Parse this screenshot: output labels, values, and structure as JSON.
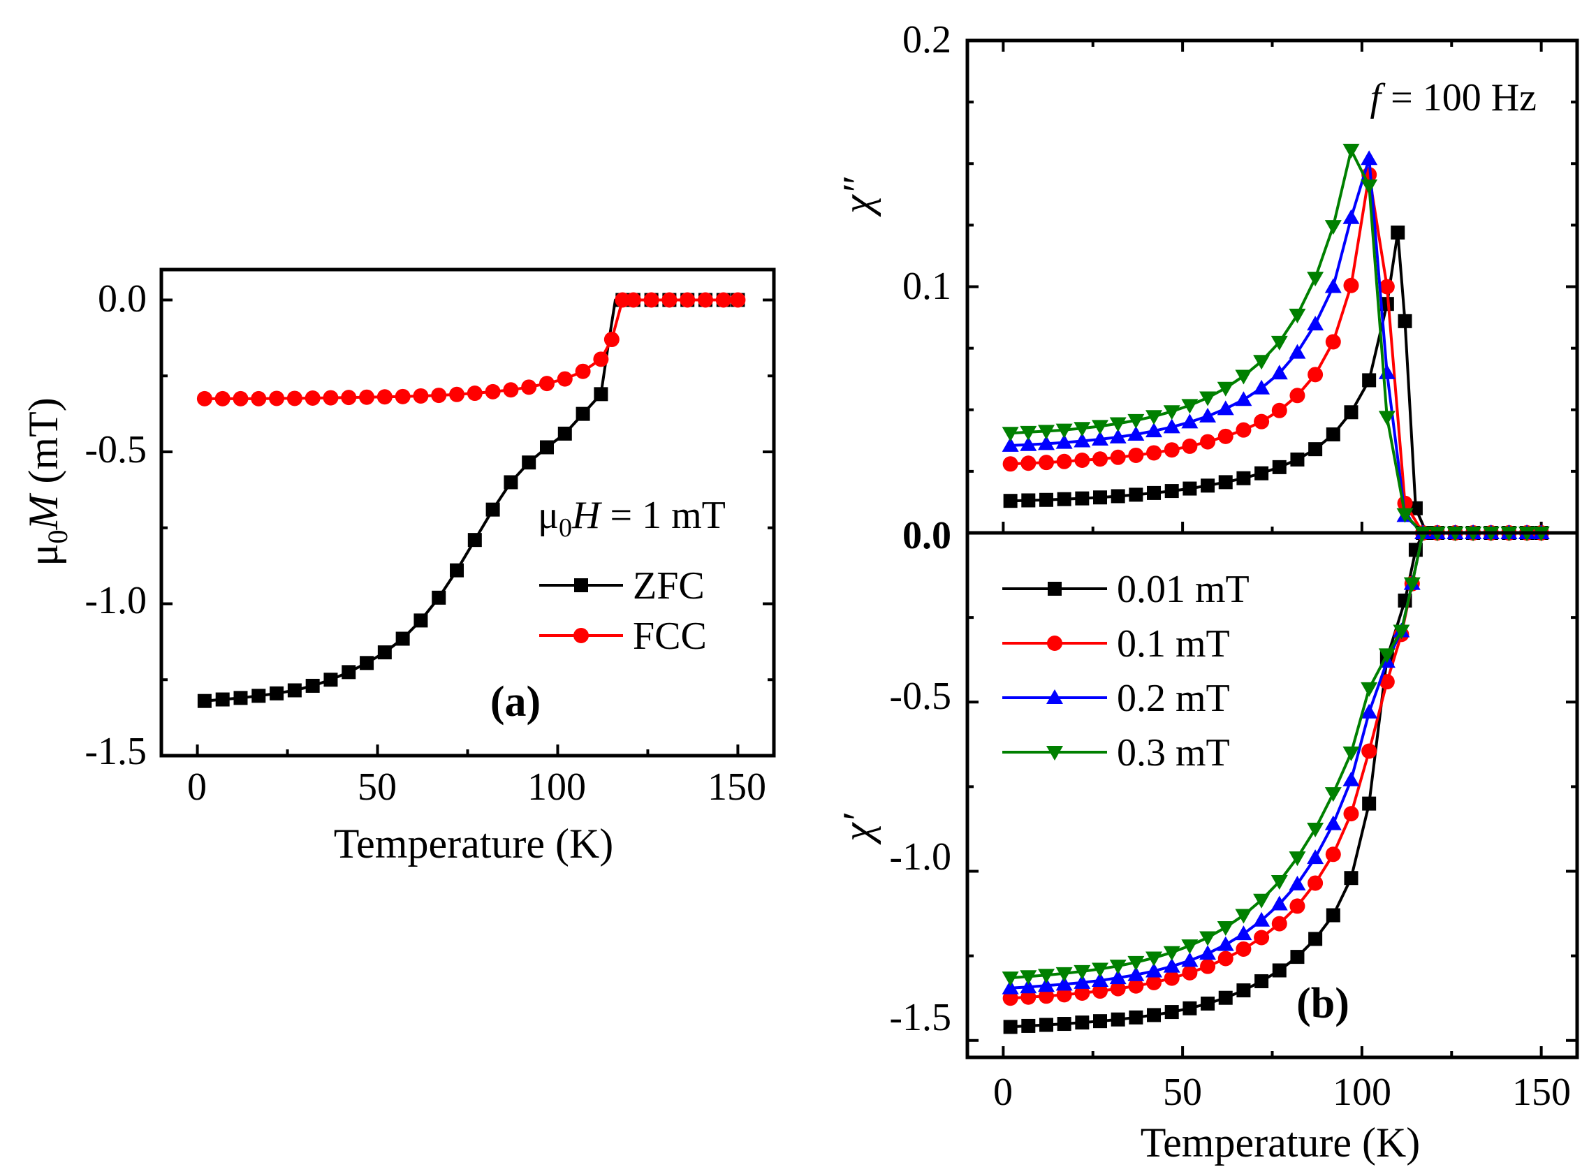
{
  "chart_data": [
    {
      "type": "line",
      "panel": "(a)",
      "title": "",
      "xlabel": "Temperature (K)",
      "ylabel": "μ0M (mT)",
      "ylabel_parts": {
        "mu": "μ",
        "sub": "0",
        "var": "M",
        "unit": "(mT)"
      },
      "xlim": [
        -10,
        160
      ],
      "ylim": [
        -1.5,
        0.1
      ],
      "xticks": [
        0,
        50,
        100,
        150
      ],
      "xtick_labels": [
        "0",
        "50",
        "100",
        "150"
      ],
      "yticks": [
        0.0,
        -0.5,
        -1.0,
        -1.5
      ],
      "ytick_labels": [
        "0.0",
        "-0.5",
        "-1.0",
        "-1.5"
      ],
      "annotation": {
        "mu": "μ",
        "sub": "0",
        "var": "H",
        "rest": " = 1 mT"
      },
      "legend_position": "middle-right",
      "series": [
        {
          "name": "ZFC",
          "color": "#000000",
          "marker": "square",
          "x": [
            2,
            7,
            12,
            17,
            22,
            27,
            32,
            37,
            42,
            47,
            52,
            57,
            62,
            67,
            72,
            77,
            82,
            87,
            92,
            97,
            102,
            107,
            112,
            114,
            116,
            118,
            121,
            126,
            131,
            136,
            141,
            146,
            150
          ],
          "y": [
            -1.32,
            -1.315,
            -1.31,
            -1.303,
            -1.295,
            -1.285,
            -1.27,
            -1.25,
            -1.225,
            -1.195,
            -1.16,
            -1.115,
            -1.055,
            -0.98,
            -0.89,
            -0.79,
            -0.69,
            -0.6,
            -0.535,
            -0.485,
            -0.44,
            -0.375,
            -0.31,
            -0.15,
            0.0,
            0.0,
            0.0,
            0.0,
            0.0,
            0.0,
            0.0,
            0.0,
            0.0
          ],
          "marker_x": [
            2,
            7,
            12,
            17,
            22,
            27,
            32,
            37,
            42,
            47,
            52,
            57,
            62,
            67,
            72,
            77,
            82,
            87,
            92,
            97,
            102,
            107,
            112,
            118,
            121,
            126,
            131,
            136,
            141,
            146,
            150
          ],
          "marker_y": [
            -1.32,
            -1.315,
            -1.31,
            -1.303,
            -1.295,
            -1.285,
            -1.27,
            -1.25,
            -1.225,
            -1.195,
            -1.16,
            -1.115,
            -1.055,
            -0.98,
            -0.89,
            -0.79,
            -0.69,
            -0.6,
            -0.535,
            -0.485,
            -0.44,
            -0.375,
            -0.31,
            0.0,
            0.0,
            0.0,
            0.0,
            0.0,
            0.0,
            0.0,
            0.0
          ]
        },
        {
          "name": "FCC",
          "color": "#ff0000",
          "marker": "circle",
          "x": [
            2,
            7,
            12,
            17,
            22,
            27,
            32,
            37,
            42,
            47,
            52,
            57,
            62,
            67,
            72,
            77,
            82,
            87,
            92,
            97,
            102,
            107,
            112,
            115,
            118,
            121,
            126,
            131,
            136,
            141,
            146,
            150
          ],
          "y": [
            -0.325,
            -0.325,
            -0.325,
            -0.325,
            -0.324,
            -0.324,
            -0.323,
            -0.322,
            -0.321,
            -0.32,
            -0.319,
            -0.318,
            -0.316,
            -0.314,
            -0.311,
            -0.307,
            -0.302,
            -0.296,
            -0.287,
            -0.275,
            -0.26,
            -0.235,
            -0.195,
            -0.13,
            0.0,
            0.0,
            0.0,
            0.0,
            0.0,
            0.0,
            0.0,
            0.0
          ]
        }
      ]
    },
    {
      "type": "line",
      "panel": "(b)",
      "subplot": "top",
      "ylabel": "χ″",
      "xlim": [
        -10,
        160
      ],
      "ylim": [
        0.0,
        0.2
      ],
      "yticks": [
        0.2,
        0.1,
        0.0
      ],
      "ytick_labels": [
        "0.2",
        "0.1",
        "0.0"
      ],
      "annotation": {
        "var": "f",
        "rest": " = 100 Hz"
      },
      "series": [
        {
          "name": "0.01 mT",
          "color": "#000000",
          "marker": "square",
          "x": [
            2,
            7,
            12,
            17,
            22,
            27,
            32,
            37,
            42,
            47,
            52,
            57,
            62,
            67,
            72,
            77,
            82,
            87,
            92,
            97,
            102,
            107,
            110,
            112,
            115,
            118,
            121,
            126,
            131,
            136,
            141,
            146,
            150
          ],
          "y": [
            0.013,
            0.0132,
            0.0134,
            0.0137,
            0.014,
            0.0144,
            0.0149,
            0.0155,
            0.0162,
            0.017,
            0.018,
            0.0192,
            0.0206,
            0.0222,
            0.0242,
            0.0267,
            0.0298,
            0.034,
            0.04,
            0.049,
            0.062,
            0.093,
            0.122,
            0.086,
            0.01,
            0.0,
            0.0,
            0.0,
            0.0,
            0.0,
            0.0,
            0.0,
            0.0
          ]
        },
        {
          "name": "0.1 mT",
          "color": "#ff0000",
          "marker": "circle",
          "x": [
            2,
            7,
            12,
            17,
            22,
            27,
            32,
            37,
            42,
            47,
            52,
            57,
            62,
            67,
            72,
            77,
            82,
            87,
            92,
            97,
            102,
            107,
            112,
            117,
            121,
            126,
            131,
            136,
            141,
            146,
            150
          ],
          "y": [
            0.028,
            0.0283,
            0.0286,
            0.029,
            0.0295,
            0.03,
            0.0307,
            0.0315,
            0.0325,
            0.0337,
            0.0352,
            0.037,
            0.0392,
            0.0418,
            0.0452,
            0.0497,
            0.0558,
            0.0643,
            0.0776,
            0.1005,
            0.1455,
            0.1,
            0.012,
            0.0,
            0.0,
            0.0,
            0.0,
            0.0,
            0.0,
            0.0,
            0.0
          ]
        },
        {
          "name": "0.2 mT",
          "color": "#0000ff",
          "marker": "triangle-up",
          "x": [
            2,
            7,
            12,
            17,
            22,
            27,
            32,
            37,
            42,
            47,
            52,
            57,
            62,
            67,
            72,
            77,
            82,
            87,
            92,
            97,
            102,
            107,
            112,
            117,
            121,
            126,
            131,
            136,
            141,
            146,
            150
          ],
          "y": [
            0.0355,
            0.0358,
            0.0362,
            0.0367,
            0.0373,
            0.038,
            0.0389,
            0.04,
            0.0414,
            0.043,
            0.045,
            0.0474,
            0.0504,
            0.0541,
            0.0588,
            0.0649,
            0.0733,
            0.0848,
            0.1,
            0.128,
            0.152,
            0.065,
            0.007,
            0.0,
            0.0,
            0.0,
            0.0,
            0.0,
            0.0,
            0.0,
            0.0
          ]
        },
        {
          "name": "0.3 mT",
          "color": "#008000",
          "marker": "triangle-down",
          "x": [
            2,
            7,
            12,
            17,
            22,
            27,
            32,
            37,
            42,
            47,
            52,
            57,
            62,
            67,
            72,
            77,
            82,
            87,
            92,
            97,
            102,
            107,
            112,
            117,
            121,
            126,
            131,
            136,
            141,
            146,
            150
          ],
          "y": [
            0.0405,
            0.0409,
            0.0413,
            0.0418,
            0.0425,
            0.0433,
            0.0444,
            0.0457,
            0.0473,
            0.0493,
            0.0518,
            0.0549,
            0.0588,
            0.0637,
            0.0697,
            0.0775,
            0.0885,
            0.1035,
            0.1245,
            0.1555,
            0.141,
            0.047,
            0.0075,
            0.0,
            0.0,
            0.0,
            0.0,
            0.0,
            0.0,
            0.0,
            0.0
          ]
        }
      ]
    },
    {
      "type": "line",
      "panel": "(b)",
      "subplot": "bottom",
      "xlabel": "Temperature (K)",
      "ylabel": "χ′",
      "xlim": [
        -10,
        160
      ],
      "ylim": [
        -1.55,
        0.0
      ],
      "xticks": [
        0,
        50,
        100,
        150
      ],
      "xtick_labels": [
        "0",
        "50",
        "100",
        "150"
      ],
      "yticks": [
        -0.5,
        -1.0,
        -1.5
      ],
      "ytick_labels": [
        "-0.5",
        "-1.0",
        "-1.5"
      ],
      "legend_position": "top-left",
      "series": [
        {
          "name": "0.01 mT",
          "color": "#000000",
          "marker": "square",
          "x": [
            2,
            7,
            12,
            17,
            22,
            27,
            32,
            37,
            42,
            47,
            52,
            57,
            62,
            67,
            72,
            77,
            82,
            87,
            92,
            97,
            102,
            107,
            112,
            115,
            117,
            121,
            126,
            131,
            136,
            141,
            146,
            150
          ],
          "y": [
            -1.46,
            -1.457,
            -1.454,
            -1.451,
            -1.447,
            -1.443,
            -1.438,
            -1.432,
            -1.425,
            -1.416,
            -1.405,
            -1.391,
            -1.374,
            -1.352,
            -1.325,
            -1.293,
            -1.253,
            -1.2,
            -1.13,
            -1.02,
            -0.8,
            -0.37,
            -0.2,
            -0.05,
            0.0,
            0.0,
            0.0,
            0.0,
            0.0,
            0.0,
            0.0,
            0.0
          ]
        },
        {
          "name": "0.1 mT",
          "color": "#ff0000",
          "marker": "circle",
          "x": [
            2,
            7,
            12,
            17,
            22,
            27,
            32,
            37,
            42,
            47,
            52,
            57,
            62,
            67,
            72,
            77,
            82,
            87,
            92,
            97,
            102,
            107,
            111,
            114,
            117,
            121,
            126,
            131,
            136,
            141,
            146,
            150
          ],
          "y": [
            -1.375,
            -1.372,
            -1.369,
            -1.365,
            -1.36,
            -1.354,
            -1.347,
            -1.339,
            -1.329,
            -1.316,
            -1.3,
            -1.281,
            -1.258,
            -1.23,
            -1.196,
            -1.155,
            -1.103,
            -1.035,
            -0.95,
            -0.83,
            -0.645,
            -0.44,
            -0.3,
            -0.15,
            0.0,
            0.0,
            0.0,
            0.0,
            0.0,
            0.0,
            0.0,
            0.0
          ]
        },
        {
          "name": "0.2 mT",
          "color": "#0000ff",
          "marker": "triangle-up",
          "x": [
            2,
            7,
            12,
            17,
            22,
            27,
            32,
            37,
            42,
            47,
            52,
            57,
            62,
            67,
            72,
            77,
            82,
            87,
            92,
            97,
            102,
            107,
            111,
            114,
            117,
            121,
            126,
            131,
            136,
            141,
            146,
            150
          ],
          "y": [
            -1.345,
            -1.342,
            -1.338,
            -1.334,
            -1.329,
            -1.323,
            -1.315,
            -1.306,
            -1.295,
            -1.281,
            -1.264,
            -1.243,
            -1.217,
            -1.185,
            -1.145,
            -1.097,
            -1.038,
            -0.96,
            -0.86,
            -0.73,
            -0.53,
            -0.38,
            -0.29,
            -0.15,
            0.0,
            0.0,
            0.0,
            0.0,
            0.0,
            0.0,
            0.0,
            0.0
          ]
        },
        {
          "name": "0.3 mT",
          "color": "#008000",
          "marker": "triangle-down",
          "x": [
            2,
            7,
            12,
            17,
            22,
            27,
            32,
            37,
            42,
            47,
            52,
            57,
            62,
            67,
            72,
            77,
            82,
            87,
            92,
            97,
            102,
            107,
            111,
            114,
            117,
            121,
            126,
            131,
            136,
            141,
            146,
            150
          ],
          "y": [
            -1.315,
            -1.311,
            -1.307,
            -1.302,
            -1.296,
            -1.289,
            -1.28,
            -1.269,
            -1.256,
            -1.24,
            -1.22,
            -1.196,
            -1.166,
            -1.13,
            -1.085,
            -1.03,
            -0.96,
            -0.875,
            -0.77,
            -0.65,
            -0.46,
            -0.36,
            -0.29,
            -0.15,
            0.0,
            0.0,
            0.0,
            0.0,
            0.0,
            0.0,
            0.0,
            0.0
          ]
        }
      ]
    }
  ]
}
